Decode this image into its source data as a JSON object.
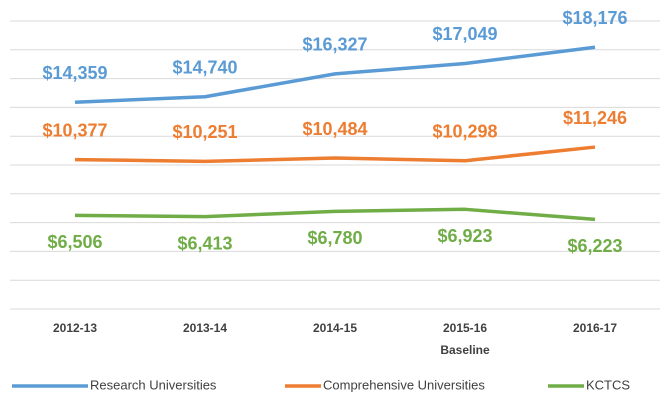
{
  "chart_data": {
    "type": "line",
    "categories": [
      "2012-13",
      "2013-14",
      "2014-15",
      "2015-16",
      "2016-17"
    ],
    "baseline_label": "Baseline",
    "series": [
      {
        "name": "Research Universities",
        "color": "#5b9bd5",
        "values": [
          14359,
          14740,
          16327,
          17049,
          18176
        ],
        "value_labels": [
          "$14,359",
          "$14,740",
          "$16,327",
          "$17,049",
          "$18,176"
        ]
      },
      {
        "name": "Comprehensive Universities",
        "color": "#ed7d31",
        "values": [
          10377,
          10251,
          10484,
          10298,
          11246
        ],
        "value_labels": [
          "$10,377",
          "$10,251",
          "$10,484",
          "$10,298",
          "$11,246"
        ]
      },
      {
        "name": "KCTCS",
        "color": "#70ad47",
        "values": [
          6506,
          6413,
          6780,
          6923,
          6223
        ],
        "value_labels": [
          "$6,506",
          "$6,413",
          "$6,780",
          "$6,923",
          "$6,223"
        ]
      }
    ],
    "ylim": [
      0,
      20000
    ],
    "yticks": [
      0,
      2000,
      4000,
      6000,
      8000,
      10000,
      12000,
      14000,
      16000,
      18000,
      20000
    ],
    "grid": true
  }
}
